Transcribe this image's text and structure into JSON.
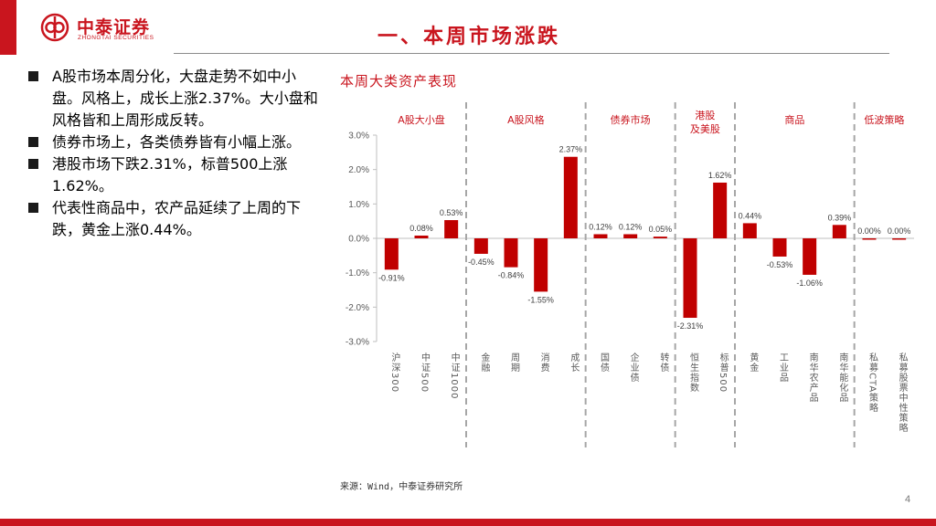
{
  "brand": {
    "name": "中泰证券",
    "subname": "ZHONGTAI SECURITIES",
    "color": "#c9151e"
  },
  "page_title": "一、本周市场涨跌",
  "bullets": [
    "A股市场本周分化，大盘走势不如中小盘。风格上，成长上涨2.37%。大小盘和风格皆和上周形成反转。",
    "债券市场上，各类债券皆有小幅上涨。",
    "港股市场下跌2.31%，标普500上涨1.62%。",
    "代表性商品中，农产品延续了上周的下跌，黄金上涨0.44%。"
  ],
  "chart_heading": "本周大类资产表现",
  "chart_data": {
    "type": "bar",
    "title": "",
    "xlabel": "",
    "ylabel": "",
    "ylim": [
      -3.0,
      3.0
    ],
    "ytick_values": [
      -3.0,
      -2.0,
      -1.0,
      0.0,
      1.0,
      2.0,
      3.0
    ],
    "yticks": [
      "-3.0%",
      "-2.0%",
      "-1.0%",
      "0.0%",
      "1.0%",
      "2.0%",
      "3.0%"
    ],
    "grid": false,
    "bar_color": "#c00000",
    "categories": [
      "沪深300",
      "中证500",
      "中证1000",
      "金融",
      "周期",
      "消费",
      "成长",
      "国债",
      "企业债",
      "转债",
      "恒生指数",
      "标普500",
      "黄金",
      "工业品",
      "南华农产品",
      "南华能化品",
      "私募CTA策略",
      "私募股票中性策略"
    ],
    "values": [
      -0.91,
      0.08,
      0.53,
      -0.45,
      -0.84,
      -1.55,
      2.37,
      0.12,
      0.12,
      0.05,
      -2.31,
      1.62,
      0.44,
      -0.53,
      -1.06,
      0.39,
      0.0,
      0.0
    ],
    "value_labels": [
      "-0.91%",
      "0.08%",
      "0.53%",
      "-0.45%",
      "-0.84%",
      "-1.55%",
      "2.37%",
      "0.12%",
      "0.12%",
      "0.05%",
      "-2.31%",
      "1.62%",
      "0.44%",
      "-0.53%",
      "-1.06%",
      "0.39%",
      "0.00%",
      "0.00%"
    ],
    "groups": [
      {
        "label": "A股大小盘",
        "count": 3
      },
      {
        "label": "A股风格",
        "count": 4
      },
      {
        "label": "债券市场",
        "count": 3
      },
      {
        "label": "港股及美股",
        "count": 2
      },
      {
        "label": "商品",
        "count": 4
      },
      {
        "label": "低波策略",
        "count": 2
      }
    ]
  },
  "source": "来源：Wind，中泰证券研究所",
  "page_number": "4"
}
